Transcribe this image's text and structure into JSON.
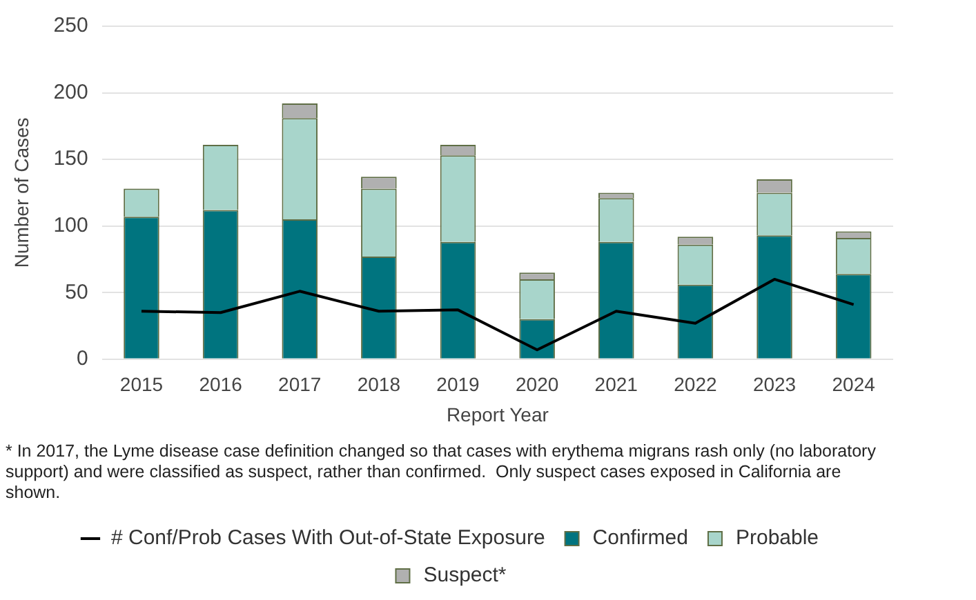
{
  "chart_data": {
    "type": "bar",
    "stacked": true,
    "xlabel": "Report Year",
    "ylabel": "Number of Cases",
    "categories": [
      "2015",
      "2016",
      "2017",
      "2018",
      "2019",
      "2020",
      "2021",
      "2022",
      "2023",
      "2024"
    ],
    "series": [
      {
        "name": "Confirmed",
        "color": "#00747f",
        "values": [
          107,
          112,
          105,
          77,
          88,
          30,
          88,
          56,
          93,
          64
        ]
      },
      {
        "name": "Probable",
        "color": "#a8d5cb",
        "values": [
          21,
          49,
          76,
          51,
          65,
          30,
          33,
          30,
          32,
          27
        ]
      },
      {
        "name": "Suspect*",
        "color": "#b0b0b0",
        "values": [
          0,
          0,
          11,
          9,
          8,
          5,
          4,
          6,
          10,
          5
        ]
      },
      {
        "name": "# Conf/Prob Cases With Out-of-State Exposure",
        "color": "#000000",
        "type": "line",
        "values": [
          36,
          35,
          51,
          36,
          37,
          7,
          36,
          27,
          60,
          41
        ]
      }
    ],
    "ylim": [
      0,
      250
    ],
    "yticks": [
      0,
      50,
      100,
      150,
      200,
      250
    ],
    "grid": "y",
    "legend": "bottom",
    "marker": "none",
    "line_style": "solid",
    "annotations": [
      "* In 2017, the Lyme disease case definition changed so that cases with erythema migrans rash only (no laboratory support) and were classified as suspect, rather than confirmed.  Only suspect cases exposed in California are shown."
    ]
  }
}
